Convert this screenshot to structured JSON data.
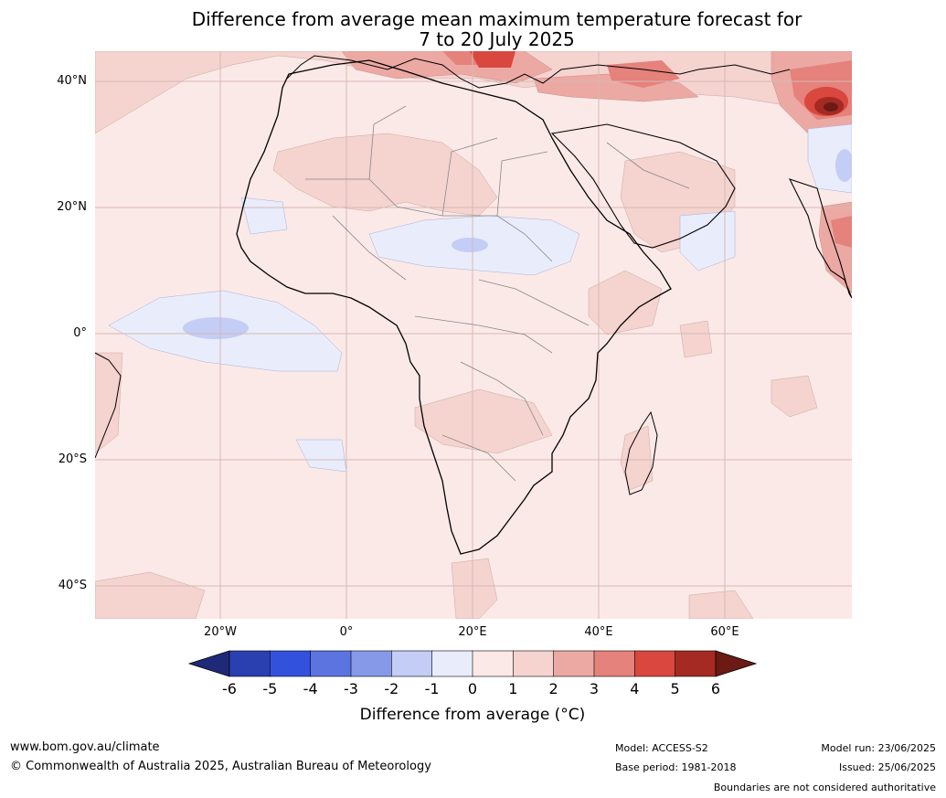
{
  "title_line1": "Difference from average mean maximum temperature forecast for",
  "title_line2": "7 to 20 July 2025",
  "lat_labels": [
    "40°N",
    "20°N",
    "0°",
    "20°S",
    "40°S"
  ],
  "lon_labels": [
    "20°W",
    "0°",
    "20°E",
    "40°E",
    "60°E"
  ],
  "colorbar": {
    "title": "Difference from average (°C)",
    "ticks": [
      "-6",
      "-5",
      "-4",
      "-3",
      "-2",
      "-1",
      "0",
      "1",
      "2",
      "3",
      "4",
      "5",
      "6"
    ],
    "colors": [
      "#1e2a78",
      "#2a3fb0",
      "#3252de",
      "#5b74e0",
      "#8699e8",
      "#c3cdf5",
      "#e9edfb",
      "#fbe9e7",
      "#f5d3cf",
      "#eca9a4",
      "#e4827b",
      "#d9473f",
      "#a52a23",
      "#6b1a14"
    ]
  },
  "footer": {
    "url": "www.bom.gov.au/climate",
    "copyright": "© Commonwealth of Australia 2025, Australian Bureau of Meteorology",
    "model": "Model: ACCESS-S2",
    "base_period": "Base period: 1981-2018",
    "model_run": "Model run: 23/06/2025",
    "issued": "Issued: 25/06/2025",
    "disclaimer": "Boundaries are not considered authoritative"
  }
}
